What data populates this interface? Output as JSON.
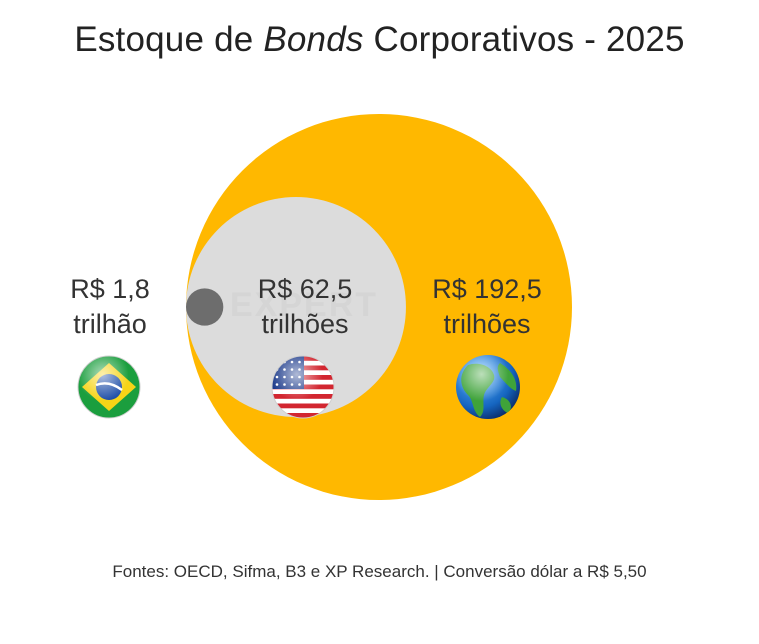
{
  "title": {
    "prefix": "Estoque de ",
    "italic": "Bonds",
    "suffix": " Corporativos - 2025"
  },
  "chart_data": {
    "type": "bubble",
    "unit": "R$ trilhões",
    "series": [
      {
        "value": 192.5,
        "label_value": "R$ 192,5",
        "label_unit": "trilhões",
        "icon": "globe-icon",
        "color": "#FFB800"
      },
      {
        "value": 62.5,
        "label_value": "R$ 62,5",
        "label_unit": "trilhões",
        "icon": "us-flag-icon",
        "color": "#DCDCDC"
      },
      {
        "value": 1.8,
        "label_value": "R$ 1,8",
        "label_unit": "trilhão",
        "icon": "brazil-flag-icon",
        "color": "#6D6D6D"
      }
    ]
  },
  "source": "Fontes: OECD, Sifma, B3 e XP Research. | Conversão dólar a R$ 5,50"
}
